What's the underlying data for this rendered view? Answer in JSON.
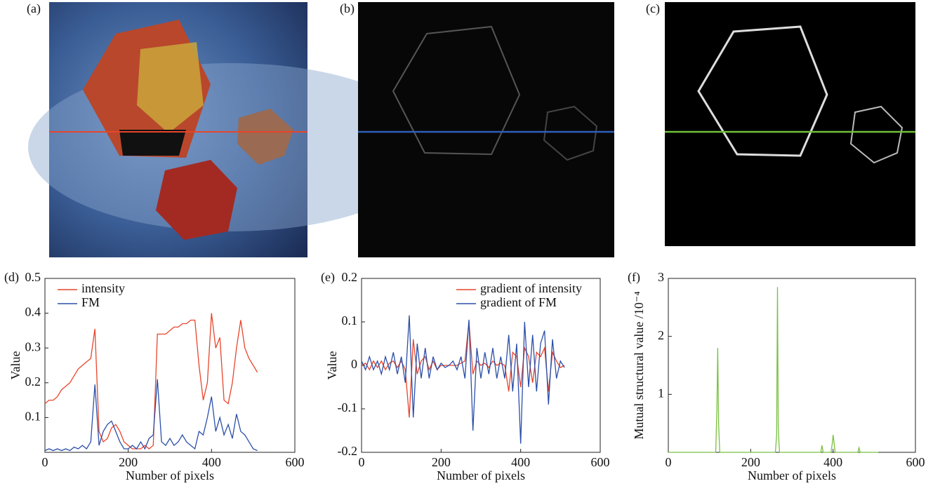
{
  "images": [
    {
      "label": "(a)"
    },
    {
      "label": "(b)"
    },
    {
      "label": "(c)"
    }
  ],
  "chart_data": [
    {
      "type": "line",
      "panel": "(d)",
      "xlabel": "Number of pixels",
      "ylabel": "Value",
      "xlim": [
        0,
        600
      ],
      "xticks": [
        0,
        200,
        400,
        600
      ],
      "ylim": [
        0,
        0.5
      ],
      "yticks": [
        0.1,
        0.2,
        0.3,
        0.4,
        0.5
      ],
      "legend": "upper left",
      "x": [
        0,
        10,
        20,
        30,
        40,
        50,
        60,
        70,
        80,
        90,
        100,
        110,
        120,
        130,
        140,
        150,
        160,
        170,
        180,
        190,
        200,
        210,
        220,
        230,
        240,
        250,
        260,
        270,
        280,
        290,
        300,
        310,
        320,
        330,
        340,
        350,
        360,
        370,
        380,
        390,
        400,
        410,
        420,
        430,
        440,
        450,
        460,
        470,
        480,
        490,
        500,
        510
      ],
      "series": [
        {
          "name": "intensity",
          "color": "#e8452c",
          "values": [
            0.14,
            0.15,
            0.15,
            0.16,
            0.18,
            0.19,
            0.2,
            0.22,
            0.24,
            0.25,
            0.26,
            0.27,
            0.355,
            0.06,
            0.03,
            0.04,
            0.07,
            0.08,
            0.06,
            0.03,
            0.02,
            0.01,
            0.01,
            0.01,
            0.02,
            0.01,
            0.02,
            0.34,
            0.34,
            0.34,
            0.35,
            0.36,
            0.36,
            0.37,
            0.37,
            0.38,
            0.38,
            0.25,
            0.15,
            0.2,
            0.4,
            0.3,
            0.33,
            0.15,
            0.14,
            0.2,
            0.3,
            0.38,
            0.3,
            0.27,
            0.25,
            0.23
          ]
        },
        {
          "name": "FM",
          "color": "#2b4fa8",
          "values": [
            0.005,
            0.01,
            0.005,
            0.01,
            0.005,
            0.01,
            0.005,
            0.015,
            0.01,
            0.02,
            0.01,
            0.03,
            0.195,
            0.02,
            0.06,
            0.08,
            0.09,
            0.06,
            0.03,
            0.01,
            0.01,
            0.02,
            0.01,
            0.03,
            0.01,
            0.04,
            0.05,
            0.21,
            0.03,
            0.02,
            0.04,
            0.02,
            0.03,
            0.05,
            0.03,
            0.02,
            0.01,
            0.06,
            0.05,
            0.1,
            0.16,
            0.06,
            0.1,
            0.05,
            0.08,
            0.04,
            0.11,
            0.06,
            0.05,
            0.03,
            0.01,
            0.005
          ]
        }
      ]
    },
    {
      "type": "line",
      "panel": "(e)",
      "xlabel": "Number of pixels",
      "ylabel": "Value",
      "xlim": [
        0,
        600
      ],
      "xticks": [
        0,
        200,
        400,
        600
      ],
      "ylim": [
        -0.2,
        0.2
      ],
      "yticks": [
        -0.2,
        -0.1,
        0,
        0.1,
        0.2
      ],
      "legend": "upper right",
      "x": [
        0,
        10,
        20,
        30,
        40,
        50,
        60,
        70,
        80,
        90,
        100,
        110,
        120,
        130,
        140,
        150,
        160,
        170,
        180,
        190,
        200,
        210,
        220,
        230,
        240,
        250,
        260,
        270,
        280,
        290,
        300,
        310,
        320,
        330,
        340,
        350,
        360,
        370,
        380,
        390,
        400,
        410,
        420,
        430,
        440,
        450,
        460,
        470,
        480,
        490,
        500,
        510
      ],
      "series": [
        {
          "name": "gradient of intensity",
          "color": "#e8452c",
          "values": [
            0,
            0.005,
            -0.01,
            0.01,
            -0.005,
            0.01,
            -0.01,
            0.005,
            0.01,
            -0.005,
            0.01,
            -0.01,
            -0.12,
            0.06,
            -0.02,
            0.01,
            0.02,
            -0.01,
            0.01,
            -0.01,
            0,
            0,
            0,
            0,
            0,
            0.005,
            0.01,
            0.1,
            -0.02,
            0.01,
            0,
            0.005,
            -0.005,
            0.01,
            0,
            0.005,
            0,
            -0.06,
            0.03,
            0.02,
            -0.05,
            0.04,
            0.02,
            -0.04,
            0.03,
            0.02,
            0.04,
            -0.06,
            0.03,
            0.01,
            -0.005,
            0
          ]
        },
        {
          "name": "gradient of FM",
          "color": "#2b4fa8",
          "values": [
            0.01,
            -0.01,
            0.02,
            -0.01,
            0.01,
            -0.02,
            0.02,
            -0.01,
            0.03,
            -0.02,
            0.02,
            -0.04,
            0.115,
            -0.12,
            0.05,
            -0.03,
            0.04,
            -0.03,
            0.02,
            -0.01,
            0.005,
            -0.005,
            0,
            0.01,
            -0.01,
            0.02,
            -0.03,
            0.105,
            -0.15,
            0.04,
            -0.03,
            0.03,
            -0.02,
            0.04,
            -0.03,
            0.02,
            -0.03,
            0.07,
            -0.06,
            0.05,
            -0.18,
            0.1,
            -0.05,
            0.07,
            -0.06,
            0.05,
            0.08,
            -0.09,
            0.06,
            -0.03,
            0.01,
            -0.005
          ]
        }
      ]
    },
    {
      "type": "line",
      "panel": "(f)",
      "xlabel": "Number of pixels",
      "ylabel": "Mutual structural value /10⁻⁴",
      "xlim": [
        0,
        600
      ],
      "xticks": [
        0,
        200,
        400,
        600
      ],
      "ylim": [
        0,
        3
      ],
      "yticks": [
        1,
        2,
        3
      ],
      "x": [
        0,
        110,
        115,
        118,
        120,
        122,
        125,
        130,
        255,
        260,
        263,
        265,
        267,
        270,
        275,
        365,
        370,
        373,
        376,
        390,
        395,
        398,
        400,
        402,
        405,
        410,
        455,
        460,
        463,
        466,
        470,
        510
      ],
      "series": [
        {
          "color": "#7ac142",
          "values": [
            0,
            0,
            0,
            0.75,
            1.8,
            0.5,
            0,
            0,
            0,
            0,
            0.3,
            2.85,
            0.4,
            0,
            0,
            0,
            0,
            0.12,
            0,
            0,
            0,
            0.15,
            0.3,
            0.2,
            0,
            0,
            0,
            0,
            0.08,
            0,
            0,
            0
          ]
        }
      ]
    }
  ]
}
